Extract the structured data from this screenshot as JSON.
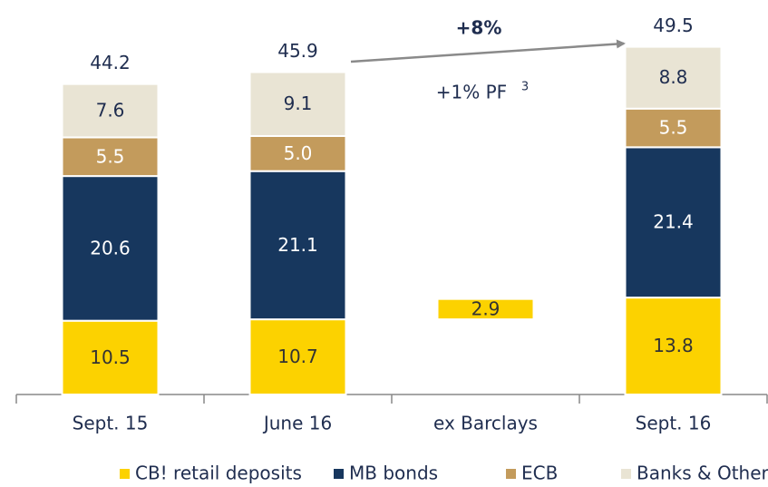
{
  "chart_data": {
    "type": "bar",
    "stacked": true,
    "categories": [
      "Sept. 15",
      "June 16",
      "ex Barclays",
      "Sept. 16"
    ],
    "series": [
      {
        "name": "CB! retail deposits",
        "color": "#fcd200",
        "text_color": "#333333",
        "values": [
          10.5,
          10.7,
          2.9,
          13.8
        ]
      },
      {
        "name": "MB bonds",
        "color": "#17375e",
        "text_color": "#ffffff",
        "values": [
          20.6,
          21.1,
          null,
          21.4
        ]
      },
      {
        "name": "ECB",
        "color": "#c39b5c",
        "text_color": "#ffffff",
        "values": [
          5.5,
          5.0,
          null,
          5.5
        ],
        "value_labels": [
          "5.5",
          "5.0",
          null,
          "5.5"
        ]
      },
      {
        "name": "Banks & Other",
        "color": "#e9e4d4",
        "text_color": "#1f2d4f",
        "values": [
          7.6,
          9.1,
          null,
          8.8
        ]
      }
    ],
    "totals": [
      44.2,
      45.9,
      null,
      49.5
    ],
    "ylim": [
      0,
      55
    ],
    "annotations": {
      "growth": "+8%",
      "pro_forma": "+1% PF",
      "pro_forma_note": "3"
    }
  }
}
